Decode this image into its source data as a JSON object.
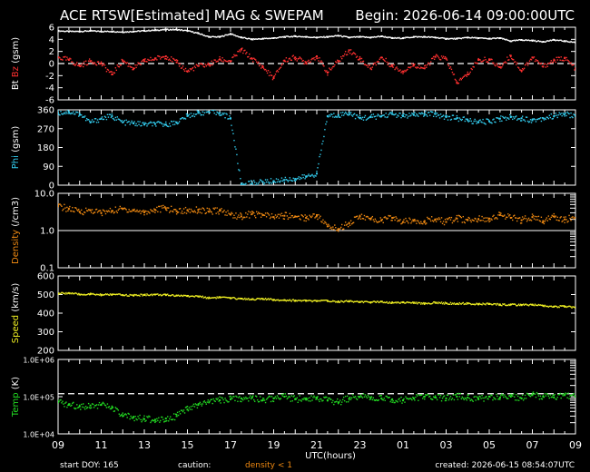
{
  "header": {
    "title": "ACE RTSW[Estimated] MAG & SWEPAM",
    "begin": "Begin: 2026-06-14 09:00:00UTC"
  },
  "footer": {
    "start_doy": "start DOY: 165",
    "caution": "caution:",
    "caution_flag": "density < 1",
    "created": "created: 2026-06-15 08:54:07UTC"
  },
  "colors": {
    "background": "#000000",
    "frame": "#ffffff",
    "bt": "#ffffff",
    "bz": "#ff3030",
    "phi": "#33ccee",
    "density": "#ee8811",
    "speed": "#eeee22",
    "temp": "#22dd22",
    "caution": "#ee8811"
  },
  "chart_data": [
    {
      "type": "scatter",
      "panel": "mag",
      "ylabel_parts": [
        "Bt",
        "Bz",
        "(gsm)"
      ],
      "ylim": [
        -6,
        6
      ],
      "yticks": [
        6,
        4,
        2,
        0,
        -2,
        -4,
        -6
      ],
      "ref_line": 0,
      "x_tick_labels": [
        "09",
        "11",
        "13",
        "15",
        "17",
        "19",
        "21",
        "23",
        "01",
        "03",
        "05",
        "07",
        "09"
      ],
      "xlabel": "UTC(hours)",
      "xlim": [
        0,
        24
      ],
      "series": [
        {
          "key": "bt",
          "x": [
            0,
            0.5,
            1,
            1.5,
            2,
            2.5,
            3,
            3.5,
            4,
            4.5,
            5,
            5.5,
            6,
            6.5,
            7,
            7.5,
            8,
            8.5,
            9,
            9.5,
            10,
            10.5,
            11,
            11.5,
            12,
            12.5,
            13,
            13.5,
            14,
            14.5,
            15,
            15.5,
            16,
            16.5,
            17,
            17.5,
            18,
            18.5,
            19,
            19.5,
            20,
            20.5,
            21,
            21.5,
            22,
            22.5,
            23,
            23.5,
            24
          ],
          "y": [
            5.4,
            5.3,
            5.3,
            5.4,
            5.3,
            5.3,
            5.2,
            5.3,
            5.4,
            5.5,
            5.6,
            5.6,
            5.4,
            5.0,
            4.4,
            4.4,
            4.9,
            4.3,
            4.0,
            4.1,
            4.2,
            4.4,
            4.5,
            4.4,
            4.3,
            4.4,
            4.6,
            4.3,
            4.4,
            4.3,
            4.5,
            4.2,
            4.2,
            4.4,
            4.4,
            4.3,
            4.1,
            4.1,
            4.3,
            4.2,
            4.1,
            4.2,
            3.7,
            3.9,
            3.8,
            3.6,
            3.9,
            3.7,
            3.5
          ]
        },
        {
          "key": "bz",
          "x": [
            0,
            0.5,
            1,
            1.5,
            2,
            2.5,
            3,
            3.5,
            4,
            4.5,
            5,
            5.5,
            6,
            6.5,
            7,
            7.5,
            8,
            8.5,
            9,
            9.5,
            10,
            10.5,
            11,
            11.5,
            12,
            12.5,
            13,
            13.5,
            14,
            14.5,
            15,
            15.5,
            16,
            16.5,
            17,
            17.5,
            18,
            18.5,
            19,
            19.5,
            20,
            20.5,
            21,
            21.5,
            22,
            22.5,
            23,
            23.5,
            24
          ],
          "y": [
            1.0,
            0.6,
            -0.4,
            0.4,
            0.0,
            -1.8,
            0.5,
            -0.8,
            0.4,
            0.8,
            1.2,
            0.2,
            -1.3,
            -0.4,
            -0.2,
            0.7,
            0.4,
            2.3,
            0.8,
            -0.6,
            -2.4,
            0.5,
            1.0,
            0.2,
            1.2,
            -1.5,
            0.4,
            2.2,
            0.8,
            -0.8,
            1.0,
            -0.4,
            -1.3,
            -0.2,
            -0.8,
            1.1,
            0.8,
            -3.2,
            -1.8,
            0.6,
            0.6,
            -0.6,
            1.3,
            -1.2,
            1.0,
            -0.5,
            0.5,
            0.9,
            -0.8
          ]
        }
      ]
    },
    {
      "type": "scatter",
      "panel": "phi",
      "ylabel_parts": [
        "Phi",
        "(gsm)"
      ],
      "ylim": [
        0,
        360
      ],
      "yticks": [
        360,
        270,
        180,
        90,
        0
      ],
      "series": [
        {
          "key": "phi",
          "x": [
            0,
            0.5,
            1,
            1.5,
            2,
            2.5,
            3,
            3.5,
            4,
            4.5,
            5,
            5.5,
            6,
            6.5,
            7,
            7.5,
            8,
            8.5,
            9,
            9.5,
            10,
            10.5,
            11,
            11.5,
            12,
            12.5,
            13,
            13.5,
            14,
            14.5,
            15,
            15.5,
            16,
            16.5,
            17,
            17.5,
            18,
            18.5,
            19,
            19.5,
            20,
            20.5,
            21,
            21.5,
            22,
            22.5,
            23,
            23.5,
            24
          ],
          "y": [
            345,
            350,
            340,
            300,
            318,
            330,
            300,
            295,
            290,
            292,
            290,
            300,
            330,
            345,
            350,
            345,
            320,
            5,
            10,
            15,
            20,
            25,
            30,
            40,
            55,
            330,
            335,
            345,
            320,
            325,
            330,
            340,
            330,
            335,
            340,
            340,
            325,
            320,
            310,
            300,
            305,
            318,
            325,
            320,
            310,
            320,
            330,
            340,
            330
          ]
        }
      ]
    },
    {
      "type": "scatter",
      "panel": "density",
      "ylabel_parts": [
        "Density",
        "(/cm3)"
      ],
      "ylim": [
        0.1,
        10
      ],
      "yscale": "log",
      "yticks": [
        10,
        1,
        0.1
      ],
      "ytick_labels": [
        "10.0",
        "1.0",
        "0.1"
      ],
      "series": [
        {
          "key": "density",
          "x": [
            0,
            0.5,
            1,
            1.5,
            2,
            2.5,
            3,
            3.5,
            4,
            4.5,
            5,
            5.5,
            6,
            6.5,
            7,
            7.5,
            8,
            8.5,
            9,
            9.5,
            10,
            10.5,
            11,
            11.5,
            12,
            12.5,
            13,
            13.5,
            14,
            14.5,
            15,
            15.5,
            16,
            16.5,
            17,
            17.5,
            18,
            18.5,
            19,
            19.5,
            20,
            20.5,
            21,
            21.5,
            22,
            22.5,
            23,
            23.5,
            24
          ],
          "y": [
            4.5,
            3.8,
            3.2,
            3.5,
            3.0,
            3.4,
            3.8,
            3.5,
            3.1,
            3.6,
            4.0,
            3.3,
            3.5,
            3.6,
            3.2,
            3.4,
            2.7,
            2.4,
            2.8,
            2.6,
            2.3,
            2.5,
            2.4,
            2.2,
            2.6,
            1.3,
            1.1,
            1.6,
            2.4,
            2.0,
            1.9,
            2.2,
            1.7,
            1.9,
            1.8,
            2.0,
            1.7,
            2.1,
            1.9,
            2.0,
            2.1,
            2.6,
            2.2,
            1.9,
            2.3,
            1.8,
            2.4,
            2.0,
            2.2
          ]
        }
      ]
    },
    {
      "type": "scatter",
      "panel": "speed",
      "ylabel_parts": [
        "Speed",
        "(km/s)"
      ],
      "ylim": [
        200,
        600
      ],
      "yticks": [
        600,
        500,
        400,
        300,
        200
      ],
      "series": [
        {
          "key": "speed",
          "x": [
            0,
            0.5,
            1,
            1.5,
            2,
            2.5,
            3,
            3.5,
            4,
            4.5,
            5,
            5.5,
            6,
            6.5,
            7,
            7.5,
            8,
            8.5,
            9,
            9.5,
            10,
            10.5,
            11,
            11.5,
            12,
            12.5,
            13,
            13.5,
            14,
            14.5,
            15,
            15.5,
            16,
            16.5,
            17,
            17.5,
            18,
            18.5,
            19,
            19.5,
            20,
            20.5,
            21,
            21.5,
            22,
            22.5,
            23,
            23.5,
            24
          ],
          "y": [
            505,
            508,
            500,
            502,
            498,
            500,
            497,
            495,
            498,
            500,
            497,
            495,
            492,
            490,
            482,
            485,
            480,
            478,
            475,
            476,
            472,
            470,
            468,
            466,
            465,
            466,
            462,
            465,
            460,
            458,
            462,
            456,
            458,
            455,
            452,
            456,
            453,
            450,
            452,
            447,
            450,
            445,
            446,
            443,
            446,
            440,
            435,
            436,
            430
          ]
        }
      ]
    },
    {
      "type": "scatter",
      "panel": "temp",
      "ylabel_parts": [
        "Temp",
        "(K)"
      ],
      "ylim": [
        10000,
        1000000
      ],
      "yscale": "log",
      "yticks": [
        1000000,
        100000,
        10000
      ],
      "ytick_labels": [
        "1.0E+06",
        "1.0E+05",
        "1.0E+04"
      ],
      "ref_line": 120000,
      "series": [
        {
          "key": "temp",
          "x": [
            0,
            0.5,
            1,
            1.5,
            2,
            2.5,
            3,
            3.5,
            4,
            4.5,
            5,
            5.5,
            6,
            6.5,
            7,
            7.5,
            8,
            8.5,
            9,
            9.5,
            10,
            10.5,
            11,
            11.5,
            12,
            12.5,
            13,
            13.5,
            14,
            14.5,
            15,
            15.5,
            16,
            16.5,
            17,
            17.5,
            18,
            18.5,
            19,
            19.5,
            20,
            20.5,
            21,
            21.5,
            22,
            22.5,
            23,
            23.5,
            24
          ],
          "y": [
            70000,
            60000,
            55000,
            58000,
            60000,
            50000,
            30000,
            28000,
            25000,
            24000,
            26000,
            30000,
            45000,
            60000,
            70000,
            80000,
            85000,
            90000,
            95000,
            80000,
            90000,
            100000,
            85000,
            90000,
            95000,
            80000,
            70000,
            90000,
            100000,
            95000,
            90000,
            85000,
            80000,
            90000,
            100000,
            95000,
            90000,
            100000,
            95000,
            85000,
            100000,
            95000,
            100000,
            90000,
            110000,
            100000,
            95000,
            110000,
            100000
          ]
        }
      ]
    }
  ]
}
